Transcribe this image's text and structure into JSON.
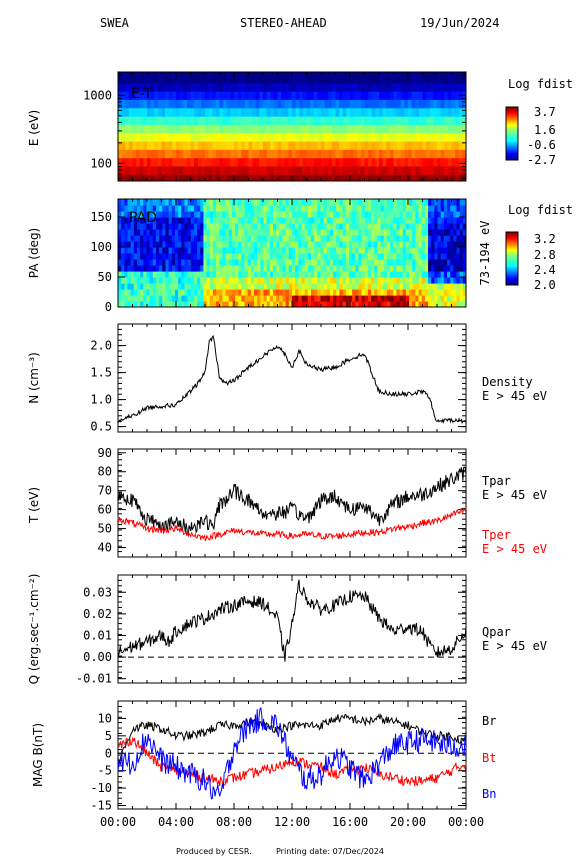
{
  "header": {
    "instrument": "SWEA",
    "spacecraft": "STEREO-AHEAD",
    "date": "19/Jun/2024"
  },
  "footer": {
    "produced": "Produced by CESR.",
    "printed": "Printing date: 07/Dec/2024"
  },
  "colors": {
    "black": "#000000",
    "red": "#ff0000",
    "blue": "#0000ff"
  },
  "chart_data": [
    {
      "type": "heatmap",
      "id": "et",
      "ylabel": "E (eV)",
      "yscale": "log",
      "ylim": [
        55,
        2200
      ],
      "yticks": [
        100,
        1000
      ],
      "yticklabels": [
        "100",
        "1000"
      ],
      "label": "E-T",
      "colorbar": {
        "title": "Log fdist",
        "range": [
          -2.7,
          3.7
        ],
        "ticks": [
          "3.7",
          "1.6",
          "-0.6",
          "-2.7"
        ]
      },
      "energy_bins_eV": [
        60,
        80,
        105,
        140,
        185,
        245,
        325,
        430,
        570,
        760,
        1000,
        1330,
        1760
      ],
      "levels": [
        3.6,
        3.2,
        2.8,
        2.2,
        1.7,
        1.2,
        0.6,
        0.0,
        -0.6,
        -1.2,
        -1.8,
        -2.3,
        -2.7
      ]
    },
    {
      "type": "heatmap",
      "id": "pad",
      "ylabel": "PA (deg)",
      "ylim": [
        0,
        180
      ],
      "yticks": [
        0,
        50,
        100,
        150
      ],
      "label": "PAD",
      "energy_range": "73-194 eV",
      "colorbar": {
        "title": "Log fdist",
        "range": [
          2.0,
          3.2
        ],
        "ticks": [
          "3.2",
          "2.8",
          "2.4",
          "2.0"
        ]
      }
    },
    {
      "type": "line",
      "id": "density",
      "ylabel": "N (cm⁻³)",
      "ylim": [
        0.4,
        2.4
      ],
      "yticks": [
        "0.5",
        "1.0",
        "1.5",
        "2.0"
      ],
      "series": [
        {
          "name": "Density",
          "sub": "E > 45 eV",
          "color": "#000000",
          "x": [
            0,
            1,
            2,
            3,
            4,
            5,
            5.5,
            6,
            6.3,
            6.6,
            7,
            7.5,
            8,
            9,
            10,
            10.5,
            11,
            11.5,
            12,
            12.5,
            13,
            14,
            15,
            16,
            17,
            17.5,
            18,
            19,
            20,
            21,
            21.5,
            21.8,
            22,
            23,
            24
          ],
          "y": [
            0.6,
            0.7,
            0.85,
            0.88,
            0.9,
            1.15,
            1.3,
            1.5,
            2.1,
            2.15,
            1.4,
            1.3,
            1.35,
            1.6,
            1.8,
            1.9,
            2.0,
            1.85,
            1.6,
            1.9,
            1.65,
            1.55,
            1.6,
            1.75,
            1.85,
            1.5,
            1.15,
            1.1,
            1.1,
            1.15,
            1.05,
            0.7,
            0.6,
            0.62,
            0.6
          ]
        }
      ]
    },
    {
      "type": "line",
      "id": "temperature",
      "ylabel": "T (eV)",
      "ylim": [
        35,
        92
      ],
      "yticks": [
        "40",
        "50",
        "60",
        "70",
        "80",
        "90"
      ],
      "series": [
        {
          "name": "Tpar",
          "sub": "E > 45 eV",
          "color": "#000000",
          "x": [
            0,
            1,
            2,
            3,
            4,
            5,
            6,
            6.5,
            7,
            8,
            9,
            10,
            11,
            12,
            13,
            14,
            15,
            16,
            17,
            18,
            19,
            20,
            21,
            22,
            23,
            24
          ],
          "y": [
            68,
            65,
            55,
            52,
            53,
            50,
            55,
            50,
            62,
            70,
            65,
            58,
            58,
            60,
            55,
            65,
            67,
            60,
            62,
            55,
            63,
            67,
            68,
            72,
            76,
            80
          ]
        },
        {
          "name": "Tper",
          "sub": "E > 45 eV",
          "color": "#ff0000",
          "x": [
            0,
            1,
            2,
            3,
            4,
            5,
            6,
            7,
            8,
            9,
            10,
            11,
            12,
            13,
            14,
            15,
            16,
            17,
            18,
            19,
            20,
            21,
            22,
            23,
            24
          ],
          "y": [
            55,
            53,
            50,
            49,
            50,
            47,
            45,
            47,
            49,
            48,
            47,
            47,
            46,
            47,
            46,
            46,
            47,
            48,
            48,
            50,
            51,
            53,
            54,
            57,
            60
          ]
        }
      ]
    },
    {
      "type": "line",
      "id": "heatflux",
      "ylabel": "Q (erg.sec⁻¹.cm⁻²)",
      "ylim": [
        -0.012,
        0.038
      ],
      "yticks": [
        "-0.01",
        "0.00",
        "0.01",
        "0.02",
        "0.03"
      ],
      "series": [
        {
          "name": "Qpar",
          "sub": "E > 45 eV",
          "color": "#000000",
          "x": [
            0,
            1,
            2,
            3,
            3.5,
            4,
            5,
            6,
            7,
            8,
            9,
            10,
            11,
            11.5,
            12,
            12.5,
            13,
            14,
            15,
            16,
            17,
            18,
            19,
            20,
            21,
            21.5,
            22,
            23,
            24
          ],
          "y": [
            0.002,
            0.005,
            0.007,
            0.01,
            0.007,
            0.012,
            0.016,
            0.018,
            0.022,
            0.024,
            0.026,
            0.025,
            0.018,
            0.0,
            0.015,
            0.034,
            0.027,
            0.022,
            0.024,
            0.028,
            0.028,
            0.018,
            0.012,
            0.014,
            0.012,
            0.005,
            0.002,
            0.004,
            0.012
          ]
        }
      ]
    },
    {
      "type": "line",
      "id": "mag",
      "ylabel": "MAG B(nT)",
      "ylim": [
        -16,
        15
      ],
      "yticks": [
        "-15",
        "-10",
        "-5",
        "0",
        "5",
        "10"
      ],
      "xlabels": [
        "00:00",
        "04:00",
        "08:00",
        "12:00",
        "16:00",
        "20:00",
        "00:00"
      ],
      "series": [
        {
          "name": "Br",
          "color": "#000000",
          "x": [
            0,
            1,
            2,
            3,
            4,
            5,
            6,
            7,
            8,
            9,
            10,
            11,
            12,
            13,
            14,
            15,
            16,
            17,
            18,
            19,
            20,
            21,
            22,
            23,
            24
          ],
          "y": [
            -3,
            7,
            8,
            7,
            5,
            5,
            6,
            8,
            8,
            9,
            8,
            7,
            8,
            8,
            8,
            10,
            10,
            9,
            10,
            9,
            8,
            6,
            5,
            5,
            3
          ]
        },
        {
          "name": "Bt",
          "color": "#ff0000",
          "x": [
            0,
            1,
            2,
            3,
            4,
            5,
            6,
            7,
            8,
            9,
            10,
            11,
            12,
            13,
            14,
            15,
            16,
            17,
            18,
            19,
            20,
            21,
            22,
            23,
            24
          ],
          "y": [
            2,
            4,
            0,
            -4,
            -5,
            -6,
            -7,
            -8,
            -7,
            -6,
            -5,
            -4,
            -2,
            -3,
            -4,
            -6,
            -5,
            -4,
            -6,
            -7,
            -8,
            -8,
            -7,
            -5,
            -3
          ]
        },
        {
          "name": "Bn",
          "color": "#0000ff",
          "x": [
            0,
            1,
            2,
            3,
            4,
            5,
            6,
            7,
            8,
            9,
            10,
            11,
            12,
            13,
            14,
            15,
            16,
            17,
            18,
            19,
            20,
            21,
            22,
            23,
            24
          ],
          "y": [
            -2,
            -3,
            5,
            -2,
            -4,
            -6,
            -8,
            -13,
            2,
            8,
            10,
            8,
            -2,
            -8,
            -6,
            0,
            -4,
            -8,
            -3,
            2,
            3,
            4,
            3,
            2,
            2
          ]
        }
      ]
    }
  ]
}
